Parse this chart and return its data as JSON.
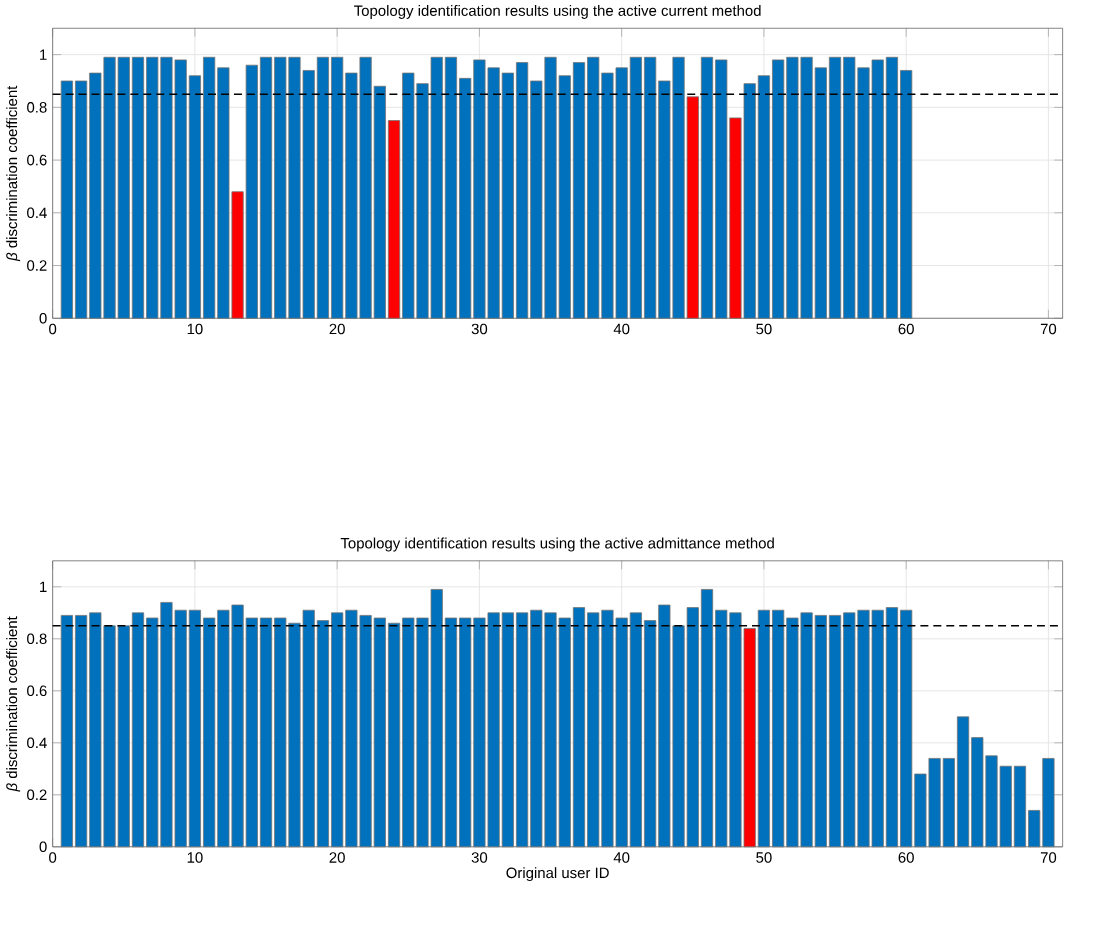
{
  "chart_data": [
    {
      "type": "bar",
      "title": "Topology identification results using the active current method",
      "ylabel": "*β* discrimination coefficient",
      "x": [
        1,
        2,
        3,
        4,
        5,
        6,
        7,
        8,
        9,
        10,
        11,
        12,
        13,
        14,
        15,
        16,
        17,
        18,
        19,
        20,
        21,
        22,
        23,
        24,
        25,
        26,
        27,
        28,
        29,
        30,
        31,
        32,
        33,
        34,
        35,
        36,
        37,
        38,
        39,
        40,
        41,
        42,
        43,
        44,
        45,
        46,
        47,
        48,
        49,
        50,
        51,
        52,
        53,
        54,
        55,
        56,
        57,
        58,
        59,
        60
      ],
      "values": [
        0.9,
        0.9,
        0.93,
        0.99,
        0.99,
        0.99,
        0.99,
        0.99,
        0.98,
        0.92,
        0.99,
        0.95,
        0.48,
        0.96,
        0.99,
        0.99,
        0.99,
        0.94,
        0.99,
        0.99,
        0.93,
        0.99,
        0.88,
        0.75,
        0.93,
        0.89,
        0.99,
        0.99,
        0.91,
        0.98,
        0.95,
        0.93,
        0.97,
        0.9,
        0.99,
        0.92,
        0.97,
        0.99,
        0.93,
        0.95,
        0.99,
        0.99,
        0.9,
        0.99,
        0.84,
        0.99,
        0.98,
        0.76,
        0.89,
        0.92,
        0.98,
        0.99,
        0.99,
        0.95,
        0.99,
        0.99,
        0.95,
        0.98,
        0.99,
        0.94
      ],
      "colors": [
        "#0072bd",
        "#0072bd",
        "#0072bd",
        "#0072bd",
        "#0072bd",
        "#0072bd",
        "#0072bd",
        "#0072bd",
        "#0072bd",
        "#0072bd",
        "#0072bd",
        "#0072bd",
        "#ff0000",
        "#0072bd",
        "#0072bd",
        "#0072bd",
        "#0072bd",
        "#0072bd",
        "#0072bd",
        "#0072bd",
        "#0072bd",
        "#0072bd",
        "#0072bd",
        "#ff0000",
        "#0072bd",
        "#0072bd",
        "#0072bd",
        "#0072bd",
        "#0072bd",
        "#0072bd",
        "#0072bd",
        "#0072bd",
        "#0072bd",
        "#0072bd",
        "#0072bd",
        "#0072bd",
        "#0072bd",
        "#0072bd",
        "#0072bd",
        "#0072bd",
        "#0072bd",
        "#0072bd",
        "#0072bd",
        "#0072bd",
        "#ff0000",
        "#0072bd",
        "#0072bd",
        "#ff0000",
        "#0072bd",
        "#0072bd",
        "#0072bd",
        "#0072bd",
        "#0072bd",
        "#0072bd",
        "#0072bd",
        "#0072bd",
        "#0072bd",
        "#0072bd",
        "#0072bd",
        "#0072bd"
      ],
      "xlim": [
        0,
        71
      ],
      "ylim": [
        0,
        1.1
      ],
      "xticks": [
        0,
        10,
        20,
        30,
        40,
        50,
        60,
        70
      ],
      "yticks": [
        0,
        0.2,
        0.4,
        0.6,
        0.8,
        1
      ],
      "grid": true,
      "ref_lines": [
        {
          "axis": "y",
          "value": 0.85,
          "color": "#000000",
          "line_style": "dashed"
        }
      ]
    },
    {
      "type": "bar",
      "title": "Topology identification results using the active admittance method",
      "xlabel": "Original user ID",
      "ylabel": "*β* discrimination coefficient",
      "x": [
        1,
        2,
        3,
        4,
        5,
        6,
        7,
        8,
        9,
        10,
        11,
        12,
        13,
        14,
        15,
        16,
        17,
        18,
        19,
        20,
        21,
        22,
        23,
        24,
        25,
        26,
        27,
        28,
        29,
        30,
        31,
        32,
        33,
        34,
        35,
        36,
        37,
        38,
        39,
        40,
        41,
        42,
        43,
        44,
        45,
        46,
        47,
        48,
        49,
        50,
        51,
        52,
        53,
        54,
        55,
        56,
        57,
        58,
        59,
        60,
        61,
        62,
        63,
        64,
        65,
        66,
        67,
        68,
        69,
        70
      ],
      "values": [
        0.89,
        0.89,
        0.9,
        0.85,
        0.85,
        0.9,
        0.88,
        0.94,
        0.91,
        0.91,
        0.88,
        0.91,
        0.93,
        0.88,
        0.88,
        0.88,
        0.86,
        0.91,
        0.87,
        0.9,
        0.91,
        0.89,
        0.88,
        0.86,
        0.88,
        0.88,
        0.99,
        0.88,
        0.88,
        0.88,
        0.9,
        0.9,
        0.9,
        0.91,
        0.9,
        0.88,
        0.92,
        0.9,
        0.91,
        0.88,
        0.9,
        0.87,
        0.93,
        0.85,
        0.92,
        0.99,
        0.91,
        0.9,
        0.84,
        0.91,
        0.91,
        0.88,
        0.9,
        0.89,
        0.89,
        0.9,
        0.91,
        0.91,
        0.92,
        0.91,
        0.28,
        0.34,
        0.34,
        0.5,
        0.42,
        0.35,
        0.31,
        0.31,
        0.14,
        0.34
      ],
      "colors": [
        "#0072bd",
        "#0072bd",
        "#0072bd",
        "#0072bd",
        "#0072bd",
        "#0072bd",
        "#0072bd",
        "#0072bd",
        "#0072bd",
        "#0072bd",
        "#0072bd",
        "#0072bd",
        "#0072bd",
        "#0072bd",
        "#0072bd",
        "#0072bd",
        "#0072bd",
        "#0072bd",
        "#0072bd",
        "#0072bd",
        "#0072bd",
        "#0072bd",
        "#0072bd",
        "#0072bd",
        "#0072bd",
        "#0072bd",
        "#0072bd",
        "#0072bd",
        "#0072bd",
        "#0072bd",
        "#0072bd",
        "#0072bd",
        "#0072bd",
        "#0072bd",
        "#0072bd",
        "#0072bd",
        "#0072bd",
        "#0072bd",
        "#0072bd",
        "#0072bd",
        "#0072bd",
        "#0072bd",
        "#0072bd",
        "#0072bd",
        "#0072bd",
        "#0072bd",
        "#0072bd",
        "#0072bd",
        "#ff0000",
        "#0072bd",
        "#0072bd",
        "#0072bd",
        "#0072bd",
        "#0072bd",
        "#0072bd",
        "#0072bd",
        "#0072bd",
        "#0072bd",
        "#0072bd",
        "#0072bd",
        "#0072bd",
        "#0072bd",
        "#0072bd",
        "#0072bd",
        "#0072bd",
        "#0072bd",
        "#0072bd",
        "#0072bd",
        "#0072bd",
        "#0072bd"
      ],
      "xlim": [
        0,
        71
      ],
      "ylim": [
        0,
        1.1
      ],
      "xticks": [
        0,
        10,
        20,
        30,
        40,
        50,
        60,
        70
      ],
      "yticks": [
        0,
        0.2,
        0.4,
        0.6,
        0.8,
        1
      ],
      "grid": true,
      "ref_lines": [
        {
          "axis": "y",
          "value": 0.85,
          "color": "#000000",
          "line_style": "dashed"
        }
      ]
    }
  ]
}
